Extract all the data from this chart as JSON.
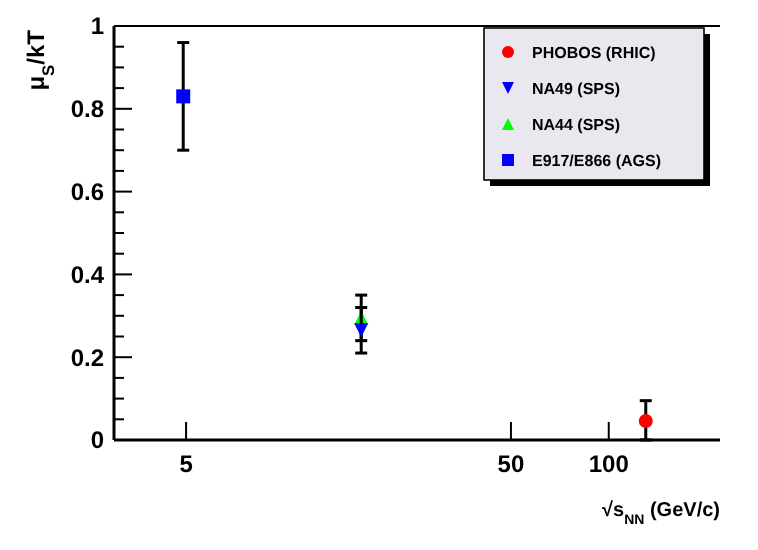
{
  "chart_data": {
    "type": "scatter",
    "xlabel": "√s$_{NN}$ (GeV/c)",
    "ylabel": "μ$_{S}$/kT",
    "log": "x",
    "xlim": [
      3,
      220
    ],
    "xticks": [
      5,
      50,
      100
    ],
    "ylim": [
      0,
      1
    ],
    "yticks": [
      0,
      {
        "value": 0.05,
        "label": null
      },
      0.2,
      {
        "value": 0.1,
        "label": null
      },
      {
        "value": 0.15,
        "label": null
      },
      {
        "value": 0.25,
        "label": null
      },
      {
        "value": 0.3,
        "label": null
      },
      {
        "value": 0.35,
        "label": null
      },
      0.4,
      {
        "value": 0.45,
        "label": null
      },
      {
        "value": 0.5,
        "label": null
      },
      {
        "value": 0.55,
        "label": null
      },
      0.6,
      {
        "value": 0.65,
        "label": null
      },
      {
        "value": 0.7,
        "label": null
      },
      {
        "value": 0.75,
        "label": null
      },
      0.8,
      {
        "value": 0.85,
        "label": null
      },
      {
        "value": 0.9,
        "label": null
      },
      {
        "value": 0.95,
        "label": null
      },
      1
    ],
    "legend": "top right",
    "grid": false,
    "series": [
      {
        "name": "PHOBOS (RHIC)",
        "color": "#ff0000",
        "marker": "circle",
        "x": [
          130
        ],
        "values": [
          0.046
        ],
        "errors": [
          [
            0,
            0.095
          ]
        ]
      },
      {
        "name": "NA49 (SPS)",
        "color": "#0000ff",
        "marker": "triangle-down",
        "x": [
          17.3
        ],
        "values": [
          0.265
        ],
        "errors": [
          [
            0.21,
            0.32
          ]
        ]
      },
      {
        "name": "NA44 (SPS)",
        "color": "#00ff00",
        "marker": "triangle",
        "x": [
          17.3
        ],
        "values": [
          0.295
        ],
        "errors": [
          [
            0.24,
            0.35
          ]
        ]
      },
      {
        "name": "E917/E866 (AGS)",
        "color": "#0000ff",
        "marker": "square",
        "x": [
          4.9
        ],
        "values": [
          0.83
        ],
        "errors": [
          [
            0.7,
            0.96
          ]
        ]
      }
    ]
  }
}
